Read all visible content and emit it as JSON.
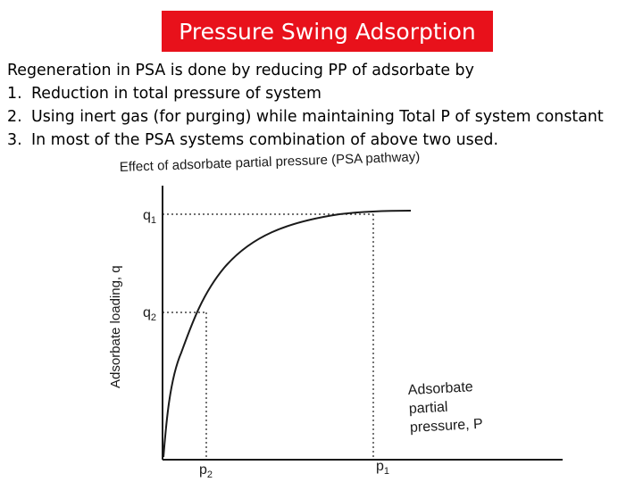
{
  "slide": {
    "title": "Pressure Swing Adsorption",
    "intro": "Regeneration in PSA is done by reducing PP of adsorbate by",
    "items": [
      {
        "num": "1.",
        "text": "Reduction in total pressure of system"
      },
      {
        "num": "2.",
        "text": "Using inert gas (for purging) while maintaining Total P of system constant"
      },
      {
        "num": "3.",
        "text": "In most of the PSA systems combination of above two used."
      }
    ]
  },
  "figure": {
    "title": "Effect of adsorbate partial pressure (PSA pathway)",
    "ylabel": "Adsorbate loading, q",
    "xlabel_lines": [
      "Adsorbate",
      "partial",
      "pressure, P"
    ],
    "q1": "q",
    "q1_sub": "1",
    "q2": "q",
    "q2_sub": "2",
    "p1": "p",
    "p1_sub": "1",
    "p2": "p",
    "p2_sub": "2",
    "colors": {
      "title_bg": "#e8111b",
      "title_text": "#ffffff",
      "line": "#1a1a1a"
    }
  }
}
